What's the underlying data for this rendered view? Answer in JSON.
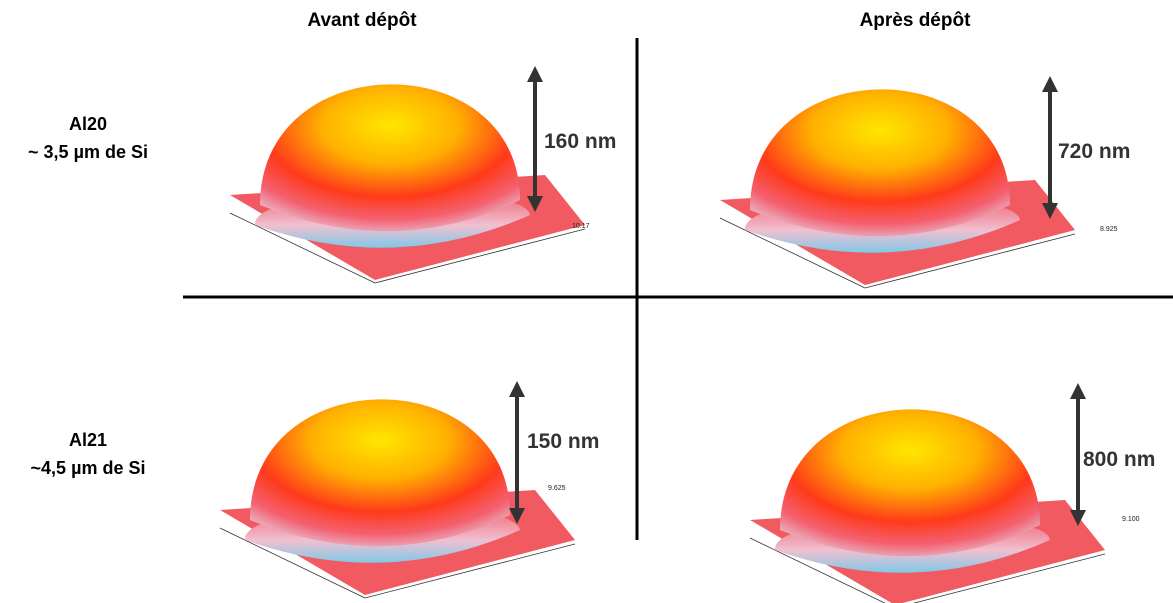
{
  "columns": [
    "Avant dépôt",
    "Après dépôt"
  ],
  "rows": [
    {
      "label": [
        "Al20",
        "~ 3,5 µm de Si"
      ],
      "panels": [
        {
          "height": "160 nm",
          "scale": "10.17"
        },
        {
          "height": "720 nm",
          "scale": "8.925"
        }
      ]
    },
    {
      "label": [
        "Al21",
        "~4,5 µm de Si"
      ],
      "panels": [
        {
          "height": "150 nm",
          "scale": "9.625"
        },
        {
          "height": "800 nm",
          "scale": "9.100"
        }
      ]
    }
  ]
}
